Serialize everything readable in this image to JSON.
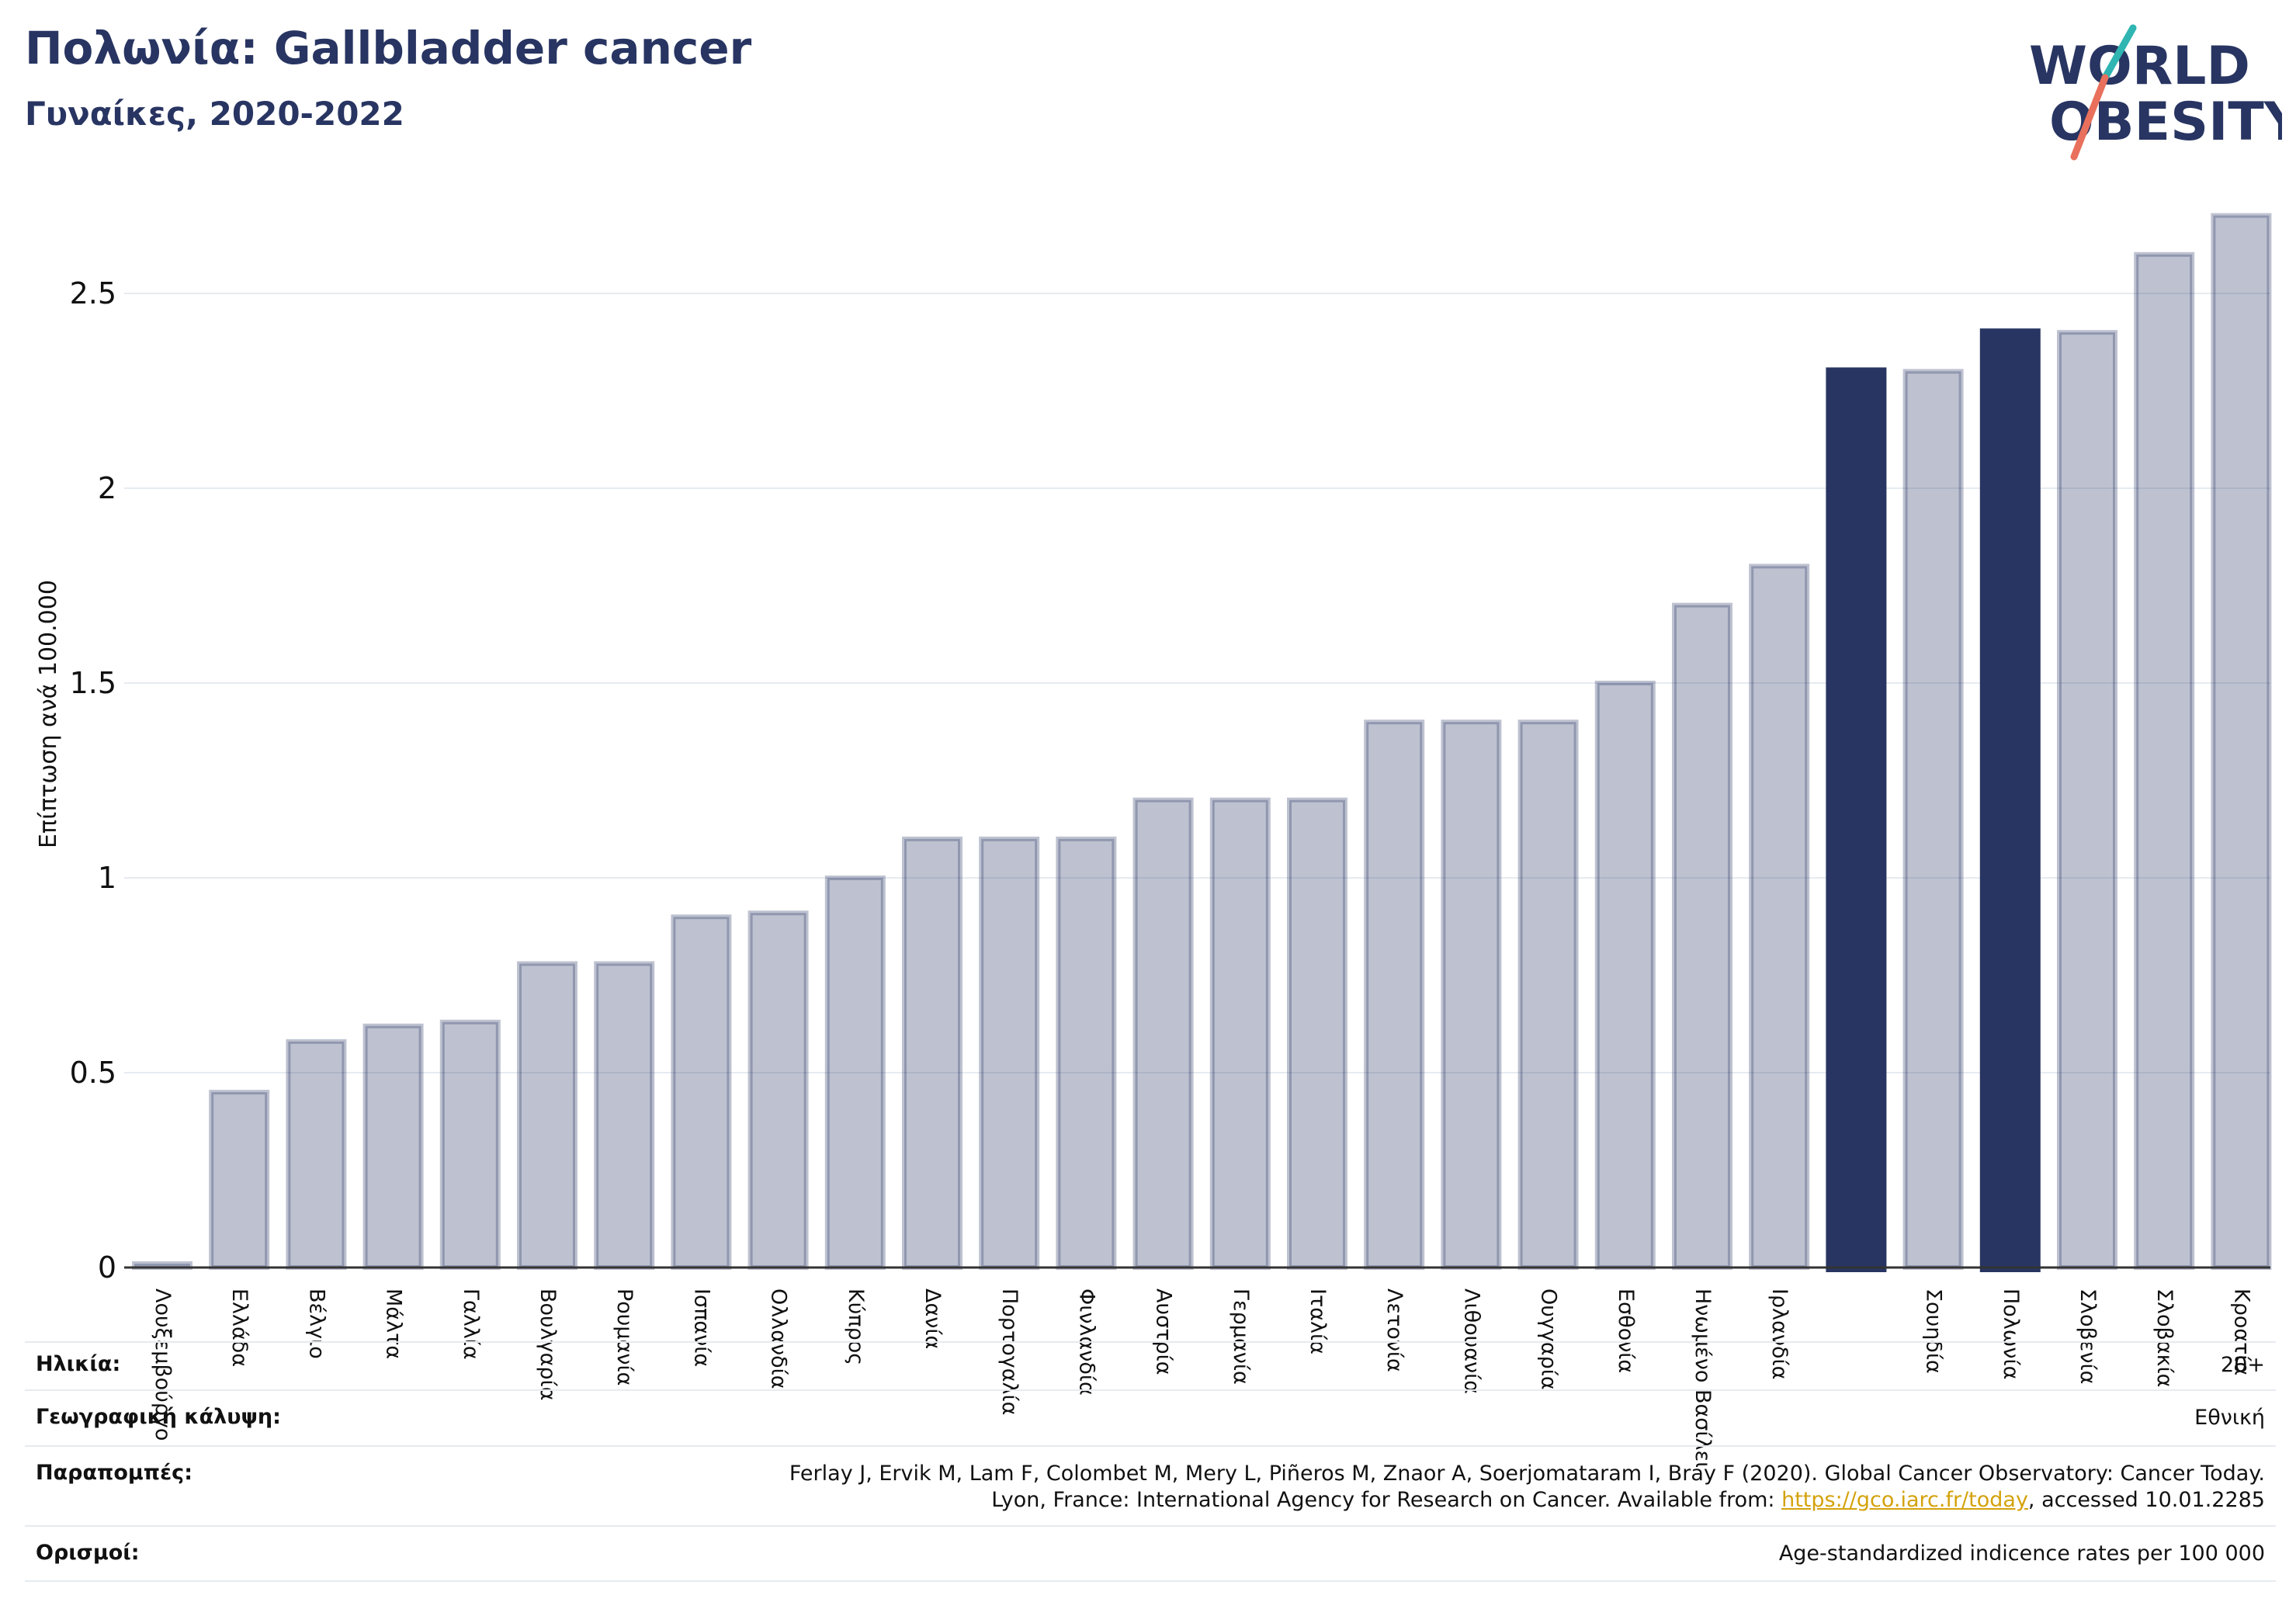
{
  "header": {
    "title": "Πολωνία: Gallbladder cancer",
    "subtitle": "Γυναίκες, 2020-2022"
  },
  "logo": {
    "line1": "WORLD",
    "line2": "OBESITY",
    "colors": {
      "text": "#283562",
      "slash_teal": "#2fb5b2",
      "slash_coral": "#e8705c"
    }
  },
  "chart_data": {
    "type": "bar",
    "ylabel": "Επίπτωση ανά 100.000",
    "ylim": [
      0,
      2.75
    ],
    "yticks": [
      0,
      0.5,
      1,
      1.5,
      2,
      2.5
    ],
    "ytick_labels": [
      "0",
      "0.5",
      "1",
      "1.5",
      "2",
      "2.5"
    ],
    "grid": true,
    "colors": {
      "default": "#283562",
      "highlight": "#283562",
      "default_opacity": 0.3
    },
    "categories": [
      "Λουξεμβούργο",
      "Ελλάδα",
      "Βέλγιο",
      "Μάλτα",
      "Γαλλία",
      "Βουλγαρία",
      "Ρουμανία",
      "Ισπανία",
      "Ολλανδία",
      "Κύπρος",
      "Δανία",
      "Πορτογαλία",
      "Φινλανδία",
      "Αυστρία",
      "Γερμανία",
      "Ιταλία",
      "Λετονία",
      "Λιθουανία",
      "Ουγγαρία",
      "Εσθονία",
      "Ηνωμένο Βασίλειο",
      "Ιρλανδία",
      "",
      "Σουηδία",
      "Πολωνία",
      "Σλοβενία",
      "Σλοβακία",
      "Κροατία"
    ],
    "values": [
      0.01,
      0.45,
      0.58,
      0.62,
      0.63,
      0.78,
      0.78,
      0.9,
      0.91,
      1.0,
      1.1,
      1.1,
      1.1,
      1.2,
      1.2,
      1.2,
      1.4,
      1.4,
      1.4,
      1.5,
      1.7,
      1.8,
      2.31,
      2.3,
      2.41,
      2.4,
      2.6,
      2.7
    ],
    "highlight": [
      false,
      false,
      false,
      false,
      false,
      false,
      false,
      false,
      false,
      false,
      false,
      false,
      false,
      false,
      false,
      false,
      false,
      false,
      false,
      false,
      false,
      false,
      true,
      false,
      true,
      false,
      false,
      false
    ]
  },
  "info": {
    "age_label": "Ηλικία:",
    "age_value": "20+",
    "coverage_label": "Γεωγραφική κάλυψη:",
    "coverage_value": "Εθνική",
    "refs_label": "Παραπομπές:",
    "refs_line1": "Ferlay J, Ervik M, Lam F, Colombet M, Mery L, Piñeros M, Znaor A, Soerjomataram I, Bray F (2020). Global Cancer Observatory: Cancer Today.",
    "refs_line2_prefix": "Lyon, France: International Agency for Research on Cancer. Available from: ",
    "refs_link": "https://gco.iarc.fr/today",
    "refs_line2_suffix": ", accessed 10.01.2285",
    "defs_label": "Ορισμοί:",
    "defs_value": "Age-standardized indicence rates per 100 000"
  }
}
